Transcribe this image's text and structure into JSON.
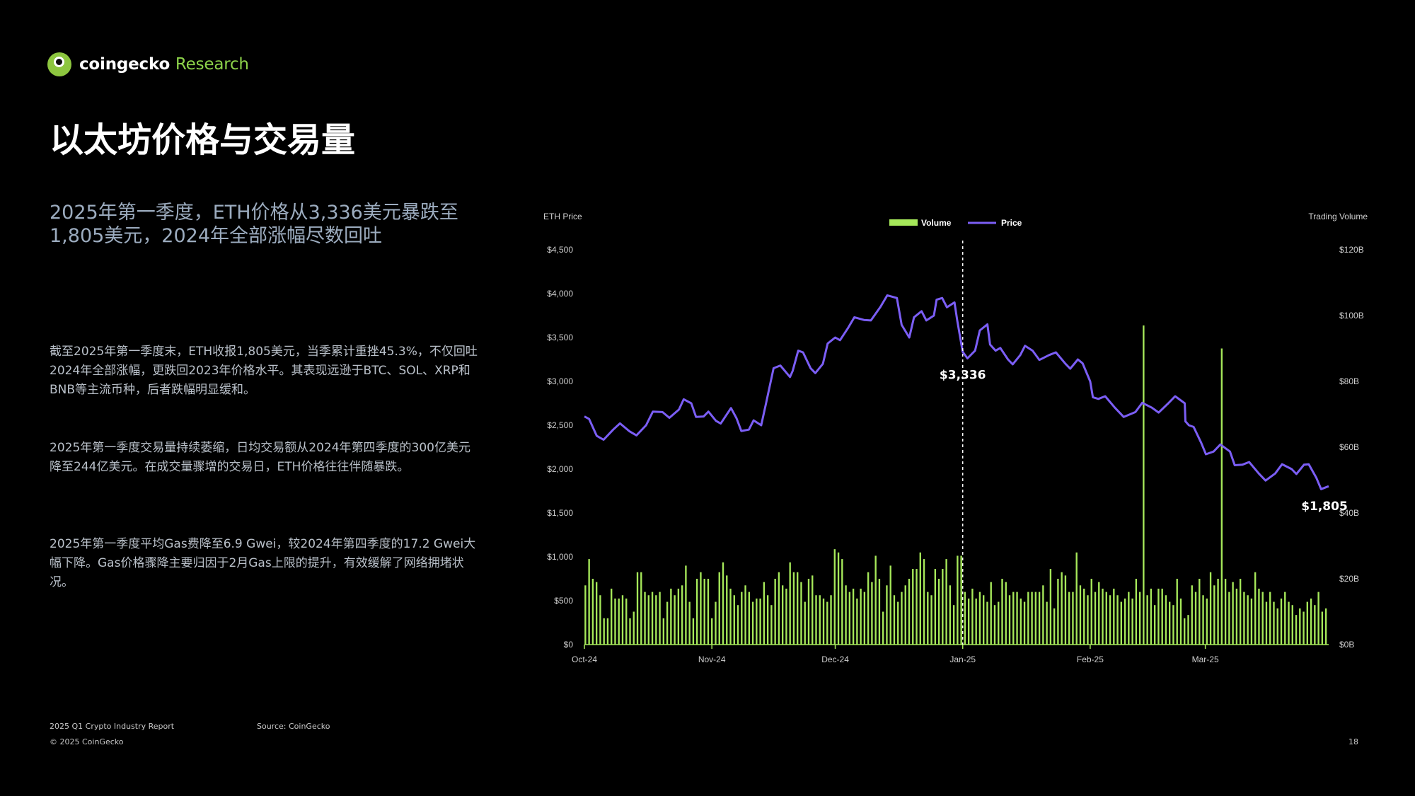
{
  "brand": {
    "name": "coingecko",
    "suffix": "Research"
  },
  "title": "以太坊价格与交易量",
  "subtitle": "2025年第一季度，ETH价格从3,336美元暴跌至1,805美元，2024年全部涨幅尽数回吐",
  "paragraphs": [
    "截至2025年第一季度末，ETH收报1,805美元，当季累计重挫45.3%，不仅回吐2024年全部涨幅，更跌回2023年价格水平。其表现远逊于BTC、SOL、XRP和BNB等主流币种，后者跌幅明显缓和。",
    "2025年第一季度交易量持续萎缩，日均交易额从2024年第四季度的300亿美元降至244亿美元。在成交量骤增的交易日，ETH价格往往伴随暴跌。",
    "2025年第一季度平均Gas费降至6.9 Gwei，较2024年第四季度的17.2 Gwei大幅下降。Gas价格骤降主要归因于2月Gas上限的提升，有效缓解了网络拥堵状况。"
  ],
  "footer": {
    "report": "2025 Q1 Crypto Industry Report",
    "copyright": "© 2025 CoinGecko",
    "source": "Source: CoinGecko",
    "page": "18"
  },
  "colors": {
    "volume": "#a6e85a",
    "price": "#7b5ef5",
    "background": "#000000"
  },
  "chart_data": {
    "type": "bar+line",
    "y_left_title": "ETH Price",
    "y_right_title": "Trading Volume",
    "legend": [
      "Volume",
      "Price"
    ],
    "legend_position": "top-center",
    "y_left_ticks": [
      "$0",
      "$500",
      "$1,000",
      "$1,500",
      "$2,000",
      "$2,500",
      "$3,000",
      "$3,500",
      "$4,000",
      "$4,500"
    ],
    "y_left_range": [
      0,
      4500
    ],
    "y_right_ticks": [
      "$0B",
      "$20B",
      "$40B",
      "$60B",
      "$80B",
      "$100B",
      "$120B"
    ],
    "y_right_range": [
      0,
      120
    ],
    "x_ticks": [
      "Oct-24",
      "Nov-24",
      "Dec-24",
      "Jan-25",
      "Feb-25",
      "Mar-25"
    ],
    "x_range": [
      "2024-10-01",
      "2025-03-31"
    ],
    "annotations": [
      {
        "label": "$3,336",
        "date": "2025-01-01",
        "value": 3336,
        "marker": "dashed-vertical-line"
      },
      {
        "label": "$1,805",
        "date": "2025-03-31",
        "value": 1805
      }
    ],
    "price_points": [
      [
        "2024-10-01",
        2600
      ],
      [
        "2024-10-04",
        2380
      ],
      [
        "2024-10-08",
        2450
      ],
      [
        "2024-10-12",
        2430
      ],
      [
        "2024-10-16",
        2500
      ],
      [
        "2024-10-20",
        2650
      ],
      [
        "2024-10-24",
        2680
      ],
      [
        "2024-10-27",
        2750
      ],
      [
        "2024-10-30",
        2600
      ],
      [
        "2024-11-02",
        2550
      ],
      [
        "2024-11-05",
        2650
      ],
      [
        "2024-11-07",
        2580
      ],
      [
        "2024-11-10",
        2450
      ],
      [
        "2024-11-13",
        2500
      ],
      [
        "2024-11-16",
        3150
      ],
      [
        "2024-11-20",
        3050
      ],
      [
        "2024-11-22",
        3350
      ],
      [
        "2024-11-25",
        3150
      ],
      [
        "2024-11-28",
        3200
      ],
      [
        "2024-12-01",
        3500
      ],
      [
        "2024-12-04",
        3600
      ],
      [
        "2024-12-08",
        3700
      ],
      [
        "2024-12-12",
        3850
      ],
      [
        "2024-12-16",
        3950
      ],
      [
        "2024-12-19",
        3500
      ],
      [
        "2024-12-22",
        3800
      ],
      [
        "2024-12-25",
        3750
      ],
      [
        "2024-12-27",
        3950
      ],
      [
        "2024-12-30",
        3900
      ],
      [
        "2025-01-01",
        3336
      ],
      [
        "2025-01-04",
        3350
      ],
      [
        "2025-01-07",
        3650
      ],
      [
        "2025-01-09",
        3350
      ],
      [
        "2025-01-12",
        3250
      ],
      [
        "2025-01-15",
        3300
      ],
      [
        "2025-01-18",
        3350
      ],
      [
        "2025-01-22",
        3300
      ],
      [
        "2025-01-26",
        3200
      ],
      [
        "2025-01-29",
        3250
      ],
      [
        "2025-02-01",
        3000
      ],
      [
        "2025-02-03",
        2800
      ],
      [
        "2025-02-07",
        2700
      ],
      [
        "2025-02-12",
        2650
      ],
      [
        "2025-02-16",
        2700
      ],
      [
        "2025-02-20",
        2750
      ],
      [
        "2025-02-24",
        2750
      ],
      [
        "2025-02-25",
        2500
      ],
      [
        "2025-02-28",
        2300
      ],
      [
        "2025-03-03",
        2200
      ],
      [
        "2025-03-07",
        2200
      ],
      [
        "2025-03-10",
        2050
      ],
      [
        "2025-03-14",
        1950
      ],
      [
        "2025-03-18",
        1950
      ],
      [
        "2025-03-22",
        2000
      ],
      [
        "2025-03-25",
        2050
      ],
      [
        "2025-03-28",
        1900
      ],
      [
        "2025-03-31",
        1805
      ]
    ],
    "volume_billions": [
      18,
      26,
      20,
      19,
      15,
      8,
      8,
      17,
      14,
      14,
      15,
      14,
      8,
      10,
      22,
      22,
      16,
      15,
      16,
      15,
      16,
      8,
      13,
      17,
      15,
      17,
      18,
      24,
      13,
      8,
      20,
      22,
      20,
      20,
      8,
      13,
      22,
      25,
      21,
      17,
      15,
      12,
      16,
      18,
      16,
      13,
      14,
      14,
      19,
      15,
      12,
      20,
      22,
      18,
      17,
      25,
      22,
      22,
      19,
      13,
      20,
      21,
      15,
      15,
      14,
      13,
      15,
      29,
      28,
      26,
      18,
      16,
      17,
      14,
      17,
      16,
      22,
      19,
      27,
      20,
      10,
      18,
      24,
      15,
      13,
      16,
      18,
      20,
      23,
      23,
      28,
      26,
      16,
      15,
      23,
      20,
      23,
      26,
      18,
      12,
      27,
      27,
      16,
      14,
      17,
      14,
      16,
      15,
      13,
      19,
      12,
      13,
      20,
      19,
      15,
      16,
      16,
      14,
      13,
      16,
      16,
      16,
      16,
      18,
      13,
      23,
      11,
      20,
      22,
      21,
      16,
      16,
      28,
      18,
      17,
      15,
      20,
      16,
      19,
      17,
      16,
      15,
      17,
      15,
      13,
      14,
      16,
      14,
      20,
      16,
      97,
      15,
      17,
      12,
      17,
      17,
      15,
      13,
      12,
      20,
      14,
      8,
      9,
      18,
      16,
      20,
      15,
      14,
      22,
      18,
      20,
      90,
      20,
      16,
      19,
      17,
      20,
      16,
      15,
      14,
      22,
      17,
      16,
      13,
      16,
      13,
      11,
      14,
      16,
      13,
      12,
      9,
      11,
      10,
      13,
      14,
      12,
      16,
      10,
      11
    ]
  }
}
